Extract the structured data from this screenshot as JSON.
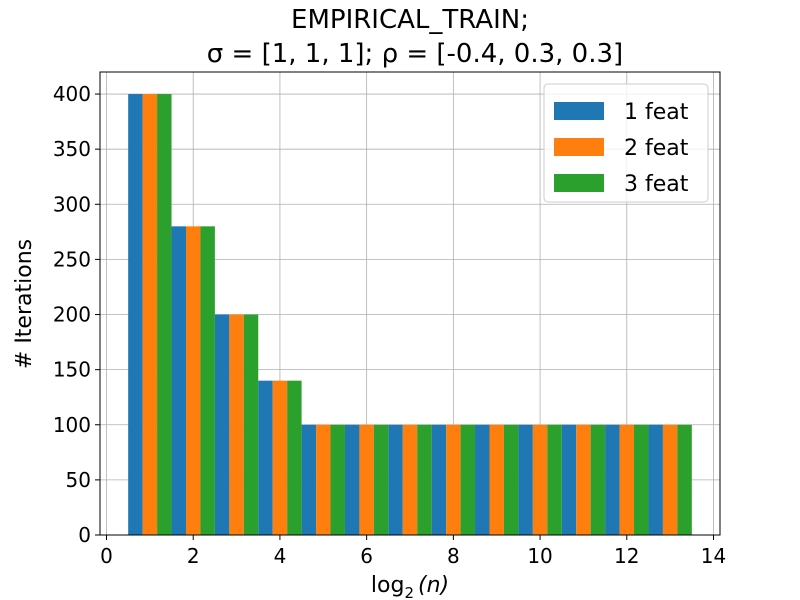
{
  "chart_data": {
    "type": "bar",
    "title_line1": "EMPIRICAL_TRAIN;",
    "title_line2": "σ = [1, 1, 1];  ρ = [-0.4, 0.3, 0.3]",
    "xlabel_base": "log",
    "xlabel_sub": "2",
    "xlabel_arg": "(n)",
    "ylabel": "# Iterations",
    "xlim": [
      -0.15,
      14.15
    ],
    "ylim": [
      0,
      420
    ],
    "xticks": [
      0,
      2,
      4,
      6,
      8,
      10,
      12,
      14
    ],
    "yticks": [
      0,
      50,
      100,
      150,
      200,
      250,
      300,
      350,
      400
    ],
    "grid": true,
    "legend_position": "top-right",
    "x": [
      1,
      2,
      3,
      4,
      5,
      6,
      7,
      8,
      9,
      10,
      11,
      12,
      13
    ],
    "bar_width": 0.3333,
    "series": [
      {
        "name": "1 feat",
        "color": "#1f77b4",
        "values": [
          400,
          280,
          200,
          140,
          100,
          100,
          100,
          100,
          100,
          100,
          100,
          100,
          100
        ]
      },
      {
        "name": "2 feat",
        "color": "#ff7f0e",
        "values": [
          400,
          280,
          200,
          140,
          100,
          100,
          100,
          100,
          100,
          100,
          100,
          100,
          100
        ]
      },
      {
        "name": "3 feat",
        "color": "#2ca02c",
        "values": [
          400,
          280,
          200,
          140,
          100,
          100,
          100,
          100,
          100,
          100,
          100,
          100,
          100
        ]
      }
    ]
  }
}
